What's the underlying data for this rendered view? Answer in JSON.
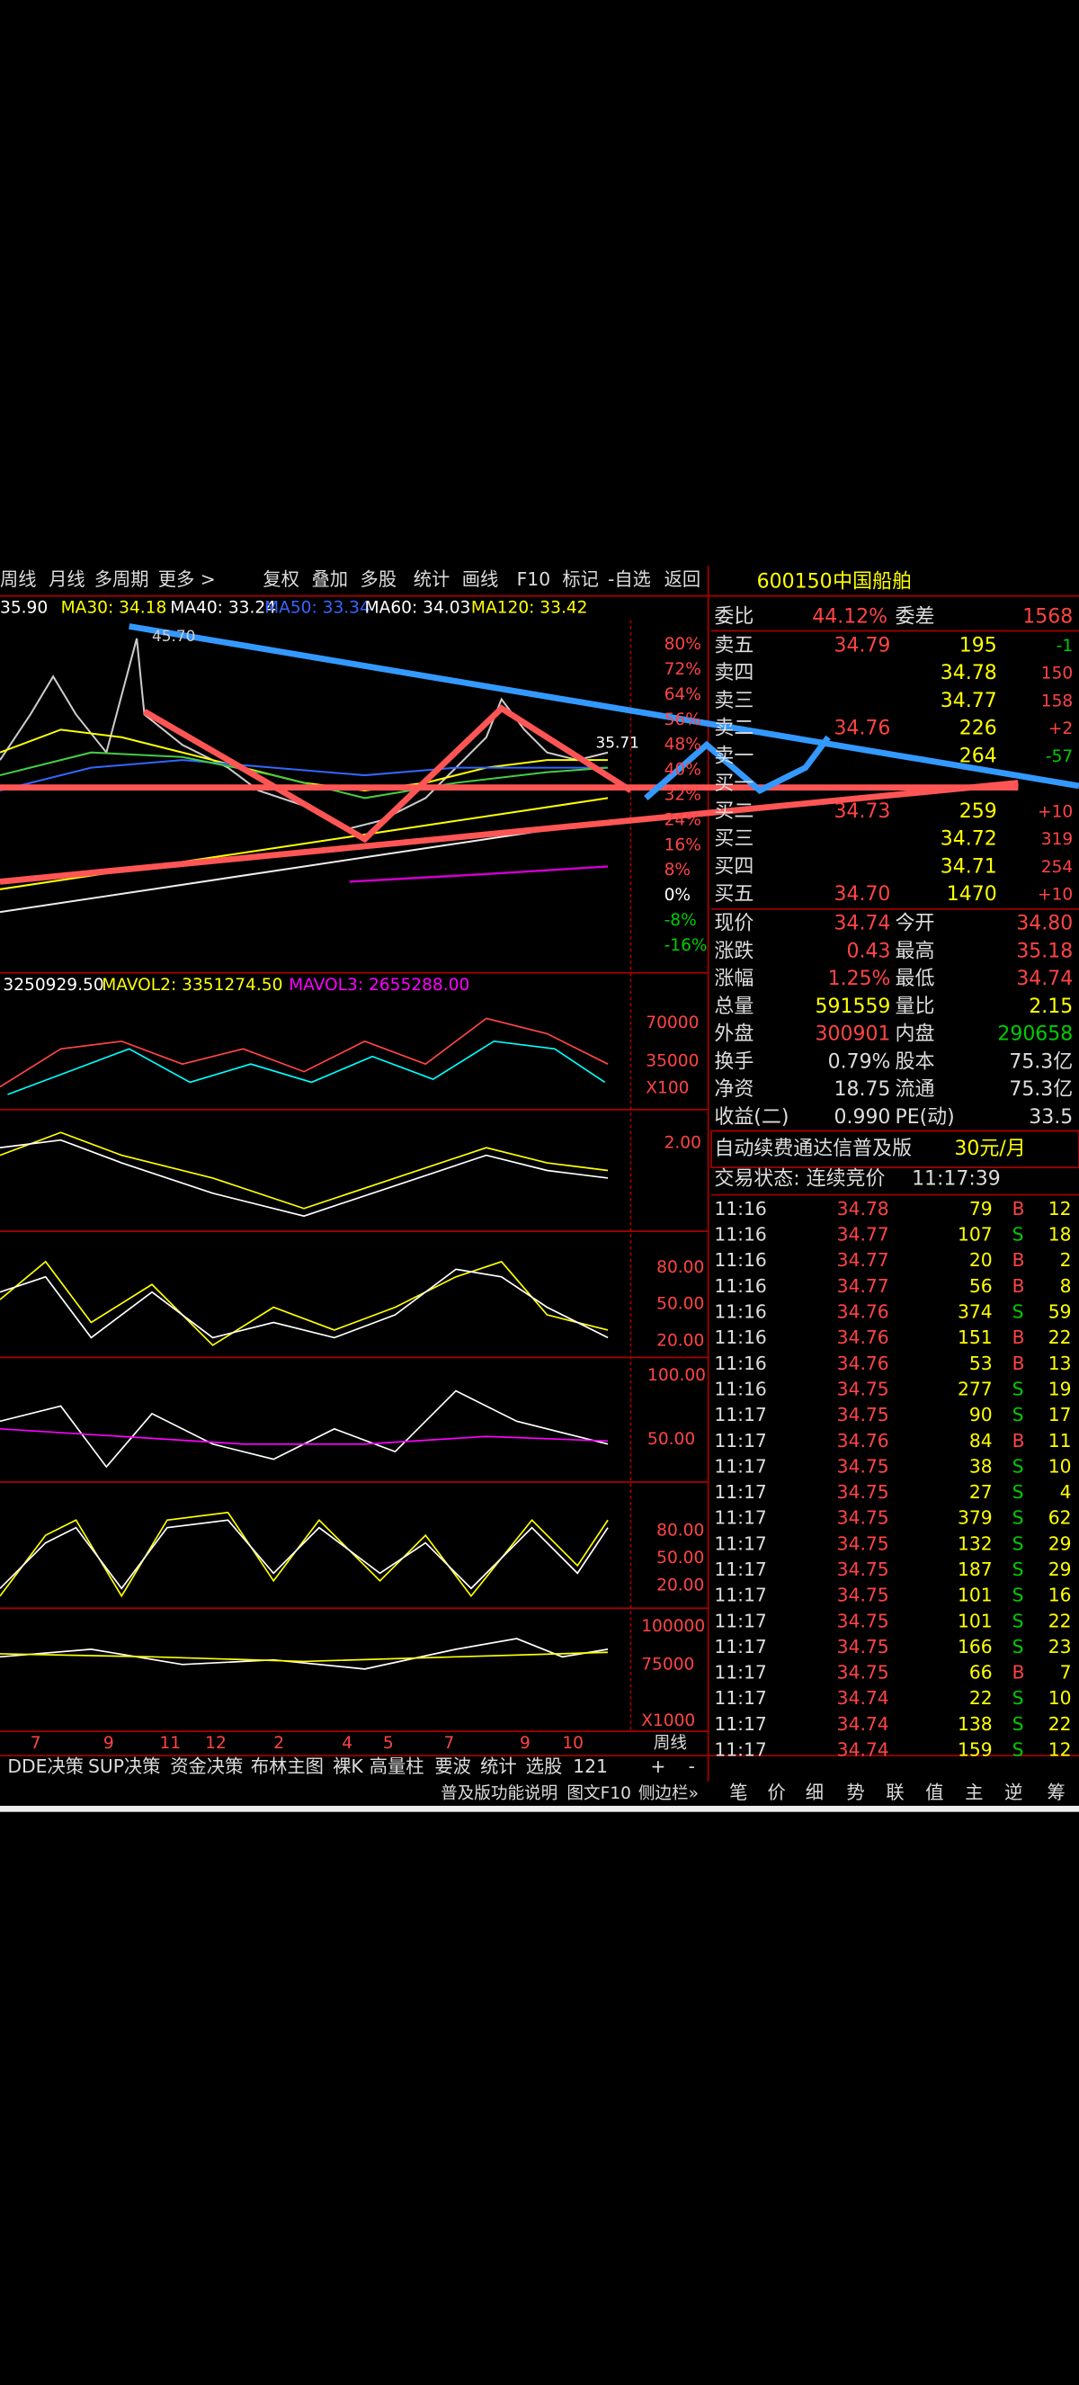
{
  "toolbar": [
    "周线",
    "月线",
    "多周期",
    "更多 >",
    "复权",
    "叠加",
    "多股",
    "统计",
    "画线",
    "F10",
    "标记",
    "-自选",
    "返回"
  ],
  "ma_legend": [
    "35.90",
    "MA30: 34.18",
    "MA40: 33.24",
    "MA50: 33.34",
    "MA60: 34.03",
    "MA120: 33.42"
  ],
  "chart_labels": {
    "high": "45.70",
    "last": "35.71"
  },
  "price_axis": [
    "80%",
    "72%",
    "64%",
    "56%",
    "48%",
    "40%",
    "32%",
    "24%",
    "16%",
    "8%",
    "0%",
    "-8%",
    "-16%"
  ],
  "volume_legend": [
    "3250929.50",
    "MAVOL2: 3351274.50",
    "MAVOL3: 2655288.00"
  ],
  "volume_axis": [
    "70000",
    "35000",
    "X100"
  ],
  "macd_axis": [
    "2.00"
  ],
  "kdj_axis": [
    "80.00",
    "50.00",
    "20.00"
  ],
  "rsi_axis": [
    "100.00",
    "50.00"
  ],
  "wr_axis": [
    "80.00",
    "50.00",
    "20.00"
  ],
  "obv_axis": [
    "100000",
    "75000",
    "X1000"
  ],
  "months": [
    "7",
    "9",
    "11",
    "12",
    "2",
    "4",
    "5",
    "7",
    "9",
    "10"
  ],
  "period": "周线",
  "bottom_tabs": [
    "DDE决策",
    "SUP决策",
    "资金决策",
    "布林主图",
    "裸K",
    "高量柱",
    "要波",
    "统计",
    "选股",
    "121",
    "+",
    "-"
  ],
  "footer_links": [
    "普及版功能说明",
    "图文F10",
    "侧边栏»"
  ],
  "side_tabs": [
    "笔",
    "价",
    "细",
    "势",
    "联",
    "值",
    "主",
    "逆",
    "筹"
  ],
  "quote": {
    "code": "600150",
    "name": "中国船舶",
    "ratio_label": "委比",
    "ratio": "44.12%",
    "diff_label": "委差",
    "diff": "1568",
    "book": [
      [
        "卖五",
        "34.79",
        "195",
        "-1"
      ],
      [
        "卖四",
        "34.78",
        "150"
      ],
      [
        "卖三",
        "34.77",
        "158"
      ],
      [
        "卖二",
        "34.76",
        "226",
        "+2"
      ],
      [
        "卖一",
        "264",
        "-57"
      ],
      [
        "买一"
      ],
      [
        "买二",
        "34.73",
        "259",
        "+10"
      ],
      [
        "买三",
        "34.72",
        "319"
      ],
      [
        "买四",
        "34.71",
        "254"
      ],
      [
        "买五",
        "34.70",
        "1470",
        "+10"
      ]
    ],
    "stats": [
      [
        "现价",
        "34.74",
        "今开",
        "34.80"
      ],
      [
        "涨跌",
        "0.43",
        "最高",
        "35.18"
      ],
      [
        "涨幅",
        "1.25%",
        "最低",
        "34.74"
      ],
      [
        "总量",
        "591559",
        "量比",
        "2.15"
      ],
      [
        "外盘",
        "300901",
        "内盘",
        "290658"
      ],
      [
        "换手",
        "0.79%",
        "股本",
        "75.3亿"
      ],
      [
        "净资",
        "18.75",
        "流通",
        "75.3亿"
      ],
      [
        "收益(二)",
        "0.990",
        "PE(动)",
        "33.5"
      ]
    ],
    "banner": [
      "自动续费通达信普及版",
      "30元/月"
    ],
    "status": [
      "交易状态: 连续竞价",
      "11:17:39"
    ],
    "ticks": [
      [
        "11:16",
        "34.78",
        "79",
        "B",
        "12"
      ],
      [
        "11:16",
        "34.77",
        "107",
        "S",
        "18"
      ],
      [
        "11:16",
        "34.77",
        "20",
        "B",
        "2"
      ],
      [
        "11:16",
        "34.77",
        "56",
        "B",
        "8"
      ],
      [
        "11:16",
        "34.76",
        "374",
        "S",
        "59"
      ],
      [
        "11:16",
        "34.76",
        "151",
        "B",
        "22"
      ],
      [
        "11:16",
        "34.76",
        "53",
        "B",
        "13"
      ],
      [
        "11:16",
        "34.75",
        "277",
        "S",
        "19"
      ],
      [
        "11:17",
        "34.75",
        "90",
        "S",
        "17"
      ],
      [
        "11:17",
        "34.76",
        "84",
        "B",
        "11"
      ],
      [
        "11:17",
        "34.75",
        "38",
        "S",
        "10"
      ],
      [
        "11:17",
        "34.75",
        "27",
        "S",
        "4"
      ],
      [
        "11:17",
        "34.75",
        "379",
        "S",
        "62"
      ],
      [
        "11:17",
        "34.75",
        "132",
        "S",
        "29"
      ],
      [
        "11:17",
        "34.75",
        "187",
        "S",
        "29"
      ],
      [
        "11:17",
        "34.75",
        "101",
        "S",
        "16"
      ],
      [
        "11:17",
        "34.75",
        "101",
        "S",
        "22"
      ],
      [
        "11:17",
        "34.75",
        "166",
        "S",
        "23"
      ],
      [
        "11:17",
        "34.75",
        "66",
        "B",
        "7"
      ],
      [
        "11:17",
        "34.74",
        "22",
        "S",
        "10"
      ],
      [
        "11:17",
        "34.74",
        "138",
        "S",
        "22"
      ],
      [
        "11:17",
        "34.74",
        "159",
        "S",
        "12"
      ]
    ]
  }
}
